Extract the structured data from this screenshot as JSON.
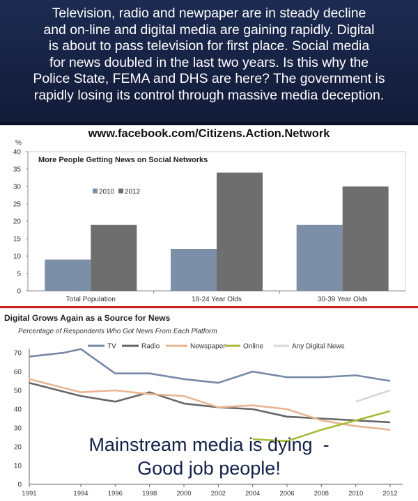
{
  "banner": {
    "lines": [
      "Television, radio and newpaper are in steady decline",
      "and on-line and digital media are gaining rapidly.  Digital",
      "is about to pass television for first place.  Social media",
      "for news doubled in the last two years.  Is this why the",
      "Police State, FEMA and DHS are here?  The government is",
      "rapidly losing its control through massive media deception."
    ]
  },
  "url": "www.facebook.com/Citizens.Action.Network",
  "overlay": {
    "line1": "Mainstream media is dying  -",
    "line2": "Good job people!"
  },
  "chart_data": [
    {
      "type": "bar",
      "title": "More People Getting News on Social Networks",
      "ylabel": "%",
      "ylim": [
        0,
        40
      ],
      "yticks": [
        "0",
        "5",
        "10",
        "15",
        "20",
        "25",
        "30",
        "35",
        "40"
      ],
      "categories": [
        "Total Population",
        "18-24 Year Olds",
        "30-39 Year Olds"
      ],
      "series": [
        {
          "name": "2010",
          "values": [
            9,
            12,
            19
          ],
          "color": "#7b8fa8"
        },
        {
          "name": "2012",
          "values": [
            19,
            34,
            30
          ],
          "color": "#6e6e6e"
        }
      ]
    },
    {
      "type": "line",
      "title": "Digital Grows Again as a Source for News",
      "subtitle": "Percentage of Respondents Who Got News From Each Platform",
      "ylim": [
        0,
        70
      ],
      "yticks": [
        "0",
        "10",
        "20",
        "30",
        "40",
        "50",
        "60",
        "70"
      ],
      "x": [
        1991,
        1994,
        1996,
        1998,
        2000,
        2002,
        2004,
        2006,
        2008,
        2010,
        2012
      ],
      "xticks": [
        "1991",
        "1994",
        "1996",
        "1998",
        "2000",
        "2002",
        "2004",
        "2006",
        "2008",
        "2010",
        "2012"
      ],
      "series": [
        {
          "name": "TV",
          "color": "#7688a3",
          "x": [
            1991,
            1993,
            1994,
            1996,
            1998,
            2000,
            2002,
            2004,
            2006,
            2008,
            2010,
            2012
          ],
          "values": [
            68,
            70,
            72,
            59,
            59,
            56,
            54,
            60,
            57,
            57,
            58,
            55
          ]
        },
        {
          "name": "Radio",
          "color": "#666666",
          "x": [
            1991,
            1994,
            1996,
            1998,
            2000,
            2002,
            2004,
            2006,
            2008,
            2010,
            2012
          ],
          "values": [
            54,
            47,
            44,
            49,
            43,
            41,
            40,
            36,
            35,
            34,
            33
          ]
        },
        {
          "name": "Newspaper",
          "color": "#e9b58f",
          "x": [
            1991,
            1994,
            1996,
            1998,
            2000,
            2002,
            2004,
            2006,
            2008,
            2010,
            2012
          ],
          "values": [
            56,
            49,
            50,
            48,
            47,
            41,
            42,
            40,
            34,
            31,
            29
          ]
        },
        {
          "name": "Online",
          "color": "#a8b935",
          "x": [
            2004,
            2006,
            2008,
            2010,
            2012
          ],
          "values": [
            24,
            23,
            29,
            34,
            39
          ]
        },
        {
          "name": "Any Digital News",
          "color": "#d3d8dc",
          "x": [
            2010,
            2012
          ],
          "values": [
            44,
            50
          ]
        }
      ]
    }
  ]
}
